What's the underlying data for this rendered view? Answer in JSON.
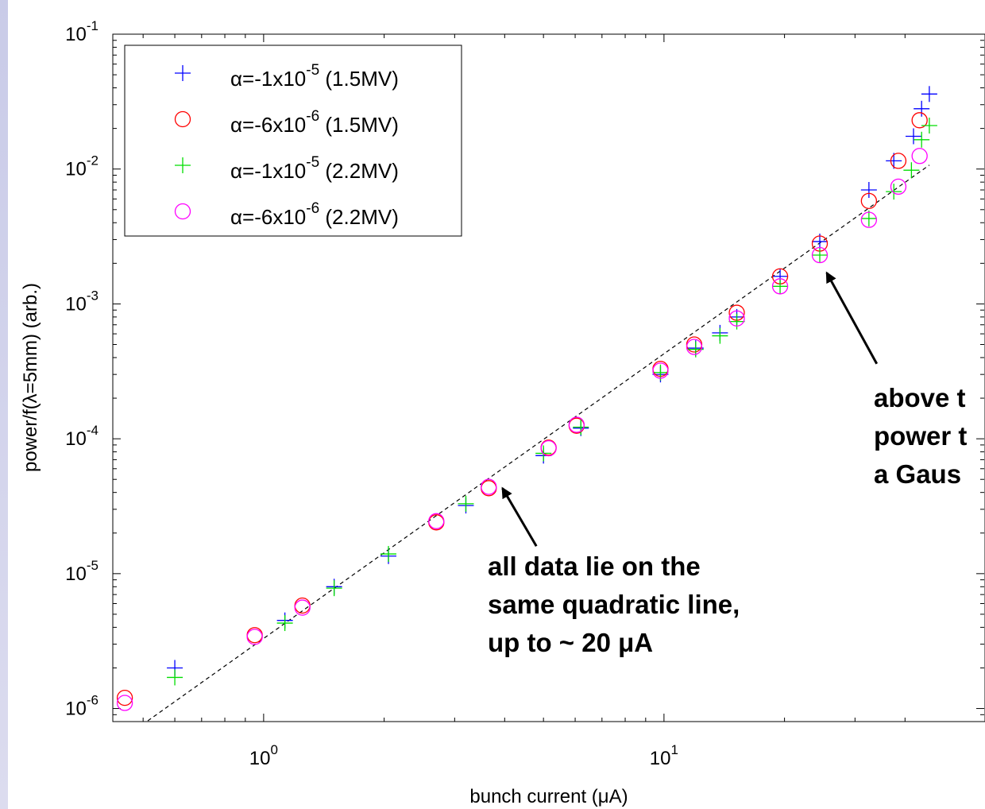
{
  "chart_data": {
    "type": "scatter",
    "xlabel": "bunch current (μA)",
    "ylabel": "power/f(λ=5mm) (arb.)",
    "x_scale": "log",
    "y_scale": "log",
    "xlim": [
      0.42,
      46
    ],
    "ylim": [
      8e-07,
      0.1
    ],
    "x_ticks": [
      {
        "value": 1,
        "base": "10",
        "exp": "0"
      },
      {
        "value": 10,
        "base": "10",
        "exp": "1"
      }
    ],
    "y_ticks": [
      {
        "value": 1e-06,
        "base": "10",
        "exp": "-6"
      },
      {
        "value": 1e-05,
        "base": "10",
        "exp": "-5"
      },
      {
        "value": 0.0001,
        "base": "10",
        "exp": "-4"
      },
      {
        "value": 0.001,
        "base": "10",
        "exp": "-3"
      },
      {
        "value": 0.01,
        "base": "10",
        "exp": "-2"
      },
      {
        "value": 0.1,
        "base": "10",
        "exp": "-1"
      }
    ],
    "grid": false,
    "legend_position": "top-left",
    "series": [
      {
        "name": "α=-1x10-5 (1.5MV)",
        "legend_pre": "α=-1x10",
        "legend_exp": "-5",
        "legend_post": " (1.5MV)",
        "marker": "plus",
        "color": "#0000ff",
        "x": [
          0.6,
          1.13,
          1.5,
          2.05,
          3.2,
          5.0,
          6.2,
          9.8,
          12.0,
          13.8,
          15.2,
          19.5,
          24.5,
          32.5,
          37.5,
          42.0,
          44.0,
          46.0
        ],
        "y": [
          2e-06,
          4.5e-06,
          8e-06,
          1.35e-05,
          3.2e-05,
          7.5e-05,
          0.00012,
          0.0003,
          0.00047,
          0.00061,
          0.0008,
          0.0016,
          0.0029,
          0.007,
          0.0115,
          0.0175,
          0.028,
          0.036
        ]
      },
      {
        "name": "α=-6x10-6 (1.5MV)",
        "legend_pre": "α=-6x10",
        "legend_exp": "-6",
        "legend_post": " (1.5MV)",
        "marker": "circle",
        "color": "#ff0000",
        "x": [
          0.45,
          0.95,
          1.25,
          2.7,
          3.65,
          5.15,
          6.05,
          9.8,
          11.9,
          15.2,
          19.5,
          24.5,
          32.5,
          38.5,
          43.5
        ],
        "y": [
          1.2e-06,
          3.5e-06,
          5.8e-06,
          2.4e-05,
          4.3e-05,
          8.6e-05,
          0.000125,
          0.00033,
          0.0005,
          0.00086,
          0.0016,
          0.0028,
          0.0058,
          0.0115,
          0.023
        ]
      },
      {
        "name": "α=-1x10-5 (2.2MV)",
        "legend_pre": "α=-1x10",
        "legend_exp": "-5",
        "legend_post": " (2.2MV)",
        "marker": "plus",
        "color": "#00dd00",
        "x": [
          0.6,
          1.13,
          1.5,
          2.05,
          3.2,
          5.0,
          6.2,
          9.8,
          12.0,
          13.8,
          15.2,
          19.5,
          24.5,
          32.5,
          37.5,
          41.5,
          44.0,
          46.0
        ],
        "y": [
          1.7e-06,
          4.3e-06,
          7.8e-06,
          1.4e-05,
          3.3e-05,
          7.8e-05,
          0.000122,
          0.00031,
          0.00046,
          0.00058,
          0.00074,
          0.00135,
          0.0023,
          0.0043,
          0.0068,
          0.0098,
          0.0165,
          0.021
        ]
      },
      {
        "name": "α=-6x10-6 (2.2MV)",
        "legend_pre": "α=-6x10",
        "legend_exp": "-6",
        "legend_post": " (2.2MV)",
        "marker": "circle",
        "color": "#ff00ff",
        "x": [
          0.45,
          0.95,
          1.25,
          2.7,
          3.65,
          5.15,
          6.05,
          9.8,
          11.9,
          15.2,
          19.5,
          24.5,
          32.5,
          38.5,
          43.5
        ],
        "y": [
          1.1e-06,
          3.4e-06,
          5.6e-06,
          2.45e-05,
          4.4e-05,
          8.5e-05,
          0.000127,
          0.00032,
          0.00048,
          0.00078,
          0.00135,
          0.0023,
          0.0042,
          0.0074,
          0.0125
        ]
      }
    ],
    "reference_line": {
      "style": "dashed",
      "color": "#000000",
      "x": [
        0.42,
        46
      ],
      "y": [
        5.3e-07,
        0.0107
      ]
    },
    "annotations": [
      {
        "lines": [
          "all data lie on the",
          "same quadratic line,",
          "up to ~ 20 μA"
        ],
        "arrow_from": [
          4.8,
          1.6e-05
        ],
        "arrow_to": [
          3.95,
          4.3e-05
        ]
      },
      {
        "lines": [
          "above t",
          "power t",
          "a Gaus"
        ],
        "arrow_from": [
          34.0,
          0.00036
        ],
        "arrow_to": [
          25.5,
          0.0017
        ]
      }
    ]
  }
}
